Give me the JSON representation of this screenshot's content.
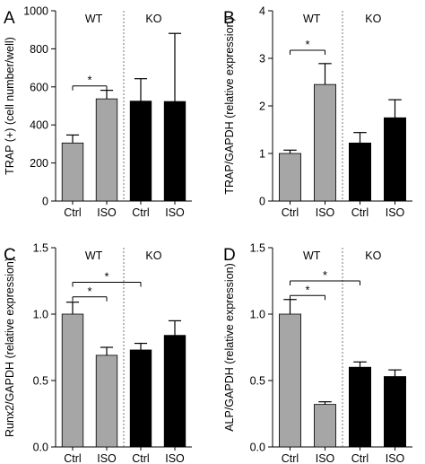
{
  "chart_data": [
    {
      "panel_label": "A",
      "type": "bar",
      "categories": [
        "Ctrl",
        "ISO",
        "Ctrl",
        "ISO"
      ],
      "values": [
        305,
        537,
        525,
        523
      ],
      "errors": [
        42,
        45,
        118,
        358
      ],
      "bar_colors": [
        "#a6a6a6",
        "#a6a6a6",
        "#000000",
        "#000000"
      ],
      "group_labels": [
        "WT",
        "KO"
      ],
      "ylabel": "TRAP (+) (cell number/well)",
      "ylim": [
        0,
        1000
      ],
      "yticks": [
        0,
        200,
        400,
        600,
        800,
        1000
      ],
      "significance": [
        {
          "from": 0,
          "to": 1,
          "label": "*",
          "y": 605
        }
      ]
    },
    {
      "panel_label": "B",
      "type": "bar",
      "categories": [
        "Ctrl",
        "ISO",
        "Ctrl",
        "ISO"
      ],
      "values": [
        1.0,
        2.45,
        1.22,
        1.75
      ],
      "errors": [
        0.07,
        0.44,
        0.22,
        0.38
      ],
      "bar_colors": [
        "#a6a6a6",
        "#a6a6a6",
        "#000000",
        "#000000"
      ],
      "group_labels": [
        "WT",
        "KO"
      ],
      "ylabel": "TRAP/GAPDH (relative expression)",
      "ylim": [
        0,
        4
      ],
      "yticks": [
        0,
        1,
        2,
        3,
        4
      ],
      "significance": [
        {
          "from": 0,
          "to": 1,
          "label": "*",
          "y": 3.17
        }
      ]
    },
    {
      "panel_label": "C",
      "type": "bar",
      "categories": [
        "Ctrl",
        "ISO",
        "Ctrl",
        "ISO"
      ],
      "values": [
        1.0,
        0.69,
        0.73,
        0.84
      ],
      "errors": [
        0.09,
        0.06,
        0.05,
        0.11
      ],
      "bar_colors": [
        "#a6a6a6",
        "#a6a6a6",
        "#000000",
        "#000000"
      ],
      "group_labels": [
        "WT",
        "KO"
      ],
      "ylabel": "Runx2/GAPDH (relative expression)",
      "ylim": [
        0,
        1.5
      ],
      "yticks": [
        0,
        0.5,
        1.0,
        1.5
      ],
      "significance": [
        {
          "from": 0,
          "to": 1,
          "label": "*",
          "y": 1.13
        },
        {
          "from": 0,
          "to": 2,
          "label": "*",
          "y": 1.24
        }
      ]
    },
    {
      "panel_label": "D",
      "type": "bar",
      "categories": [
        "Ctrl",
        "ISO",
        "Ctrl",
        "ISO"
      ],
      "values": [
        1.0,
        0.32,
        0.6,
        0.53
      ],
      "errors": [
        0.11,
        0.02,
        0.04,
        0.05
      ],
      "bar_colors": [
        "#a6a6a6",
        "#a6a6a6",
        "#000000",
        "#000000"
      ],
      "group_labels": [
        "WT",
        "KO"
      ],
      "ylabel": "ALP/GAPDH (relative expression)",
      "ylim": [
        0,
        1.5
      ],
      "yticks": [
        0,
        0.5,
        1.0,
        1.5
      ],
      "significance": [
        {
          "from": 0,
          "to": 1,
          "label": "*",
          "y": 1.14
        },
        {
          "from": 0,
          "to": 2,
          "label": "*",
          "y": 1.25
        }
      ]
    }
  ]
}
